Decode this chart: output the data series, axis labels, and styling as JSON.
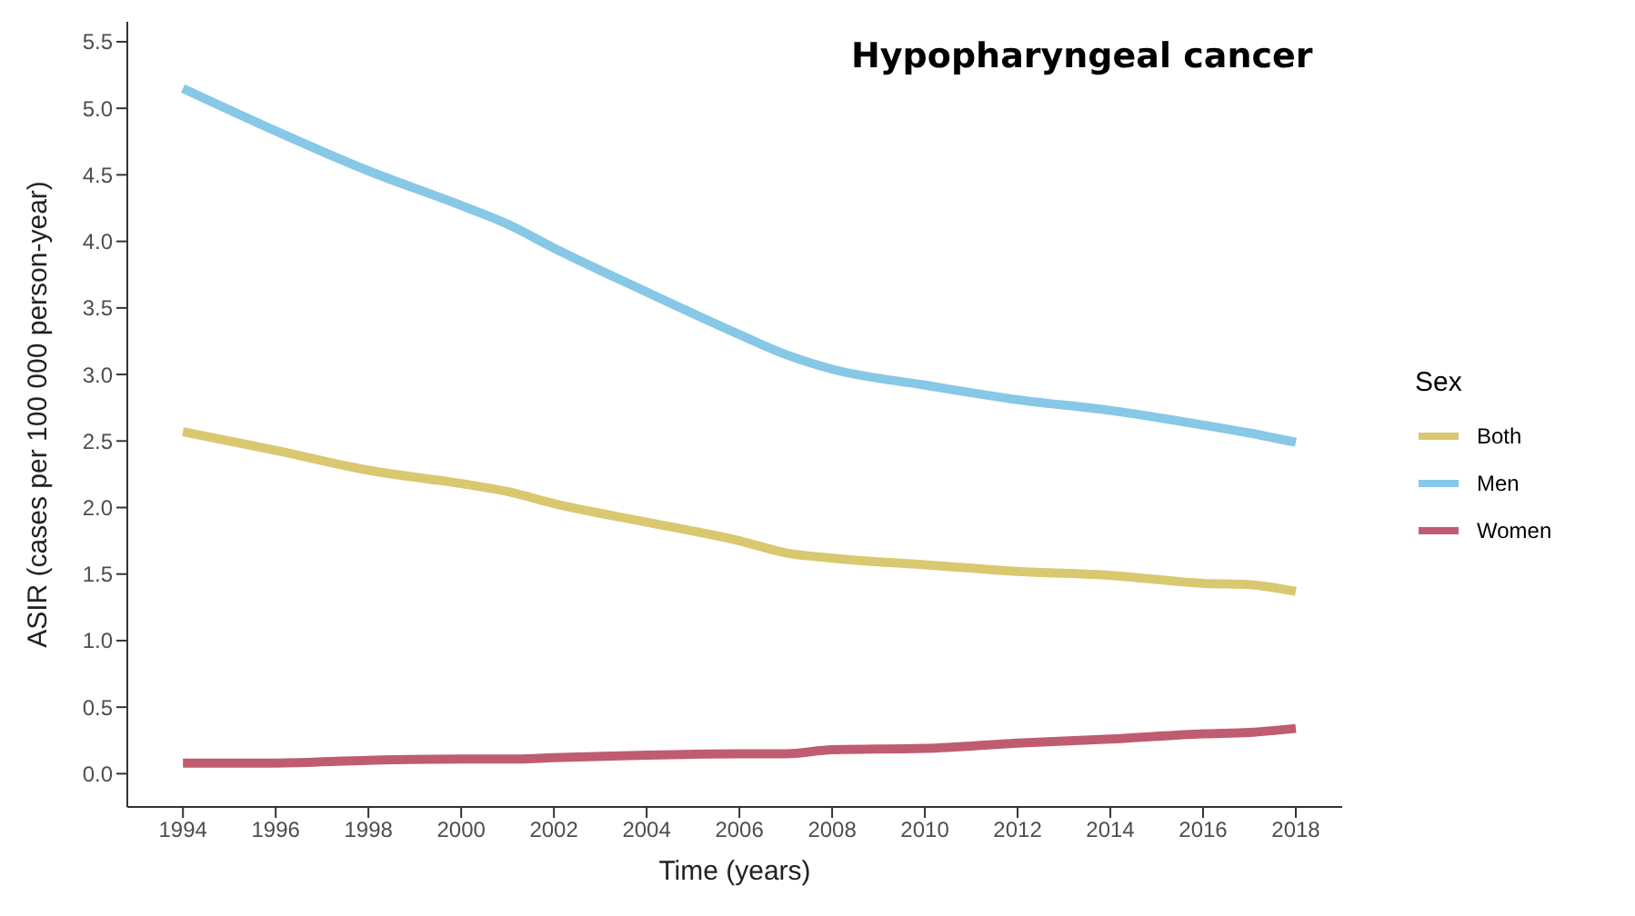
{
  "chart_data": {
    "type": "line",
    "title": "Hypopharyngeal cancer",
    "xlabel": "Time (years)",
    "ylabel": "ASIR (cases per 100 000 person-year)",
    "legend_title": "Sex",
    "legend": "right",
    "marker": "none",
    "line_style": "solid",
    "x": [
      1994,
      1996,
      1998,
      2000,
      2001,
      2002,
      2004,
      2006,
      2007,
      2008,
      2010,
      2012,
      2014,
      2016,
      2017,
      2018
    ],
    "xlim": [
      1992.8,
      2019
    ],
    "xticks": [
      1994,
      1996,
      1998,
      2000,
      2002,
      2004,
      2006,
      2008,
      2010,
      2012,
      2014,
      2016,
      2018
    ],
    "ylim": [
      -0.25,
      5.65
    ],
    "yticks": [
      {
        "value": 0,
        "label": "0.0"
      },
      0.5,
      {
        "value": 1,
        "label": "1.0"
      },
      1.5,
      {
        "value": 2,
        "label": "2.0"
      },
      2.5,
      {
        "value": 3,
        "label": "3.0"
      },
      3.5,
      {
        "value": 4,
        "label": "4.0"
      },
      4.5,
      {
        "value": 5,
        "label": "5.0"
      },
      5.5
    ],
    "series": [
      {
        "name": "Both",
        "color": "#d9c870",
        "values": [
          2.57,
          2.43,
          2.28,
          2.18,
          2.12,
          2.03,
          1.89,
          1.75,
          1.66,
          1.62,
          1.57,
          1.52,
          1.49,
          1.43,
          1.42,
          1.37
        ]
      },
      {
        "name": "Men",
        "color": "#87c8e6",
        "values": [
          5.15,
          4.83,
          4.53,
          4.27,
          4.13,
          3.95,
          3.62,
          3.3,
          3.15,
          3.04,
          2.92,
          2.81,
          2.73,
          2.62,
          2.56,
          2.49
        ]
      },
      {
        "name": "Women",
        "color": "#c05c70",
        "values": [
          0.08,
          0.08,
          0.1,
          0.11,
          0.11,
          0.12,
          0.14,
          0.15,
          0.15,
          0.18,
          0.19,
          0.23,
          0.26,
          0.3,
          0.31,
          0.34
        ]
      }
    ]
  }
}
